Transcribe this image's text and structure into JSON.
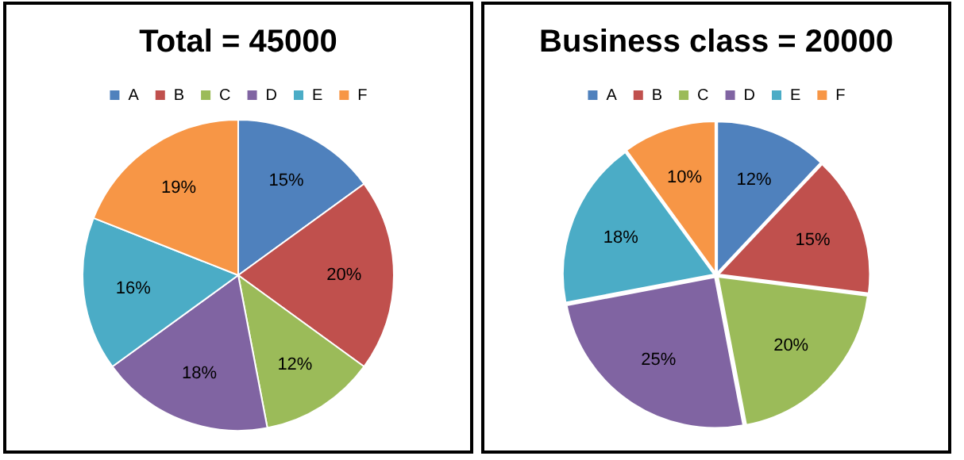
{
  "chart_data": [
    {
      "type": "pie",
      "title": "Total = 45000",
      "categories": [
        "A",
        "B",
        "C",
        "D",
        "E",
        "F"
      ],
      "values": [
        15,
        20,
        12,
        18,
        16,
        19
      ],
      "value_labels": [
        "15%",
        "20%",
        "12%",
        "18%",
        "16%",
        "19%"
      ],
      "colors": [
        "#4f81bd",
        "#c0504d",
        "#9bbb59",
        "#8064a2",
        "#4bacc6",
        "#f79646"
      ],
      "legend": "top"
    },
    {
      "type": "pie",
      "title": "Business class = 20000",
      "categories": [
        "A",
        "B",
        "C",
        "D",
        "E",
        "F"
      ],
      "values": [
        12,
        15,
        20,
        25,
        18,
        10
      ],
      "value_labels": [
        "12%",
        "15%",
        "20%",
        "25%",
        "18%",
        "10%"
      ],
      "colors": [
        "#4f81bd",
        "#c0504d",
        "#9bbb59",
        "#8064a2",
        "#4bacc6",
        "#f79646"
      ],
      "legend": "top"
    }
  ]
}
